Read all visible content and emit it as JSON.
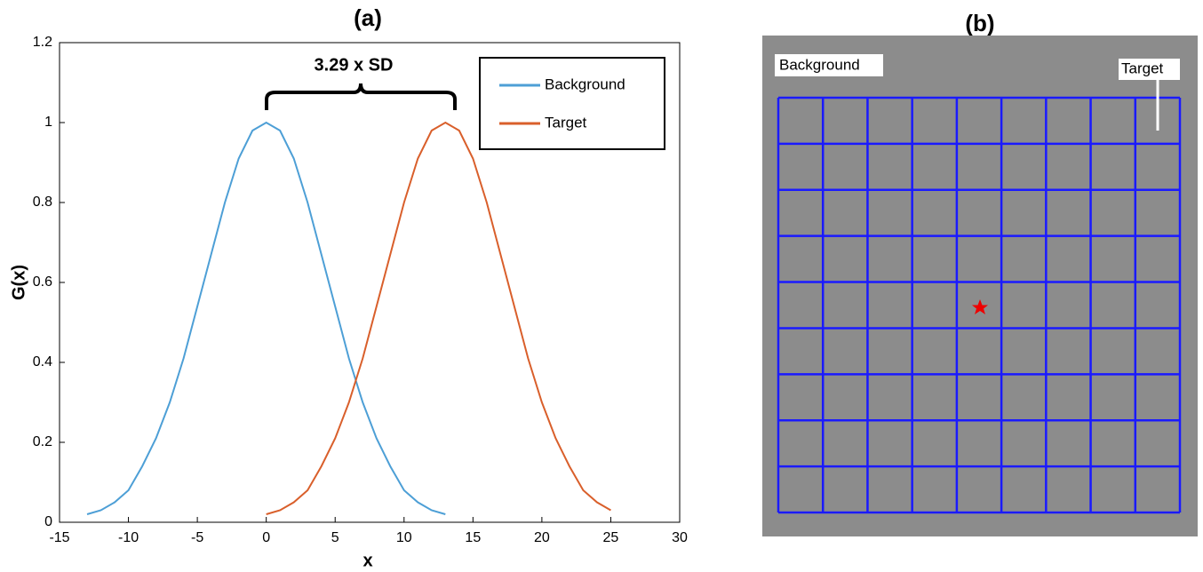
{
  "chart_data": {
    "type": "line",
    "title": "(a)",
    "xlabel": "x",
    "ylabel": "G(x)",
    "annotation": "3.29 x SD",
    "series": [
      {
        "name": "Background",
        "color": "#4d9fd6",
        "x": [
          -13,
          -12,
          -11,
          -10,
          -9,
          -8,
          -7,
          -6,
          -5,
          -4,
          -3,
          -2,
          -1,
          0,
          1,
          2,
          3,
          4,
          5,
          6,
          7,
          8,
          9,
          10,
          11,
          12,
          13
        ],
        "values": [
          0.02,
          0.03,
          0.05,
          0.08,
          0.14,
          0.21,
          0.3,
          0.41,
          0.54,
          0.67,
          0.8,
          0.91,
          0.98,
          1,
          0.98,
          0.91,
          0.8,
          0.67,
          0.54,
          0.41,
          0.3,
          0.21,
          0.14,
          0.08,
          0.05,
          0.03,
          0.02
        ]
      },
      {
        "name": "Target",
        "color": "#d95f2b",
        "x": [
          0,
          1,
          2,
          3,
          4,
          5,
          6,
          7,
          8,
          9,
          10,
          11,
          12,
          13,
          14,
          15,
          16,
          17,
          18,
          19,
          20,
          21,
          22,
          23,
          24,
          25
        ],
        "values": [
          0.02,
          0.03,
          0.05,
          0.08,
          0.14,
          0.21,
          0.3,
          0.41,
          0.54,
          0.67,
          0.8,
          0.91,
          0.98,
          1,
          0.98,
          0.91,
          0.8,
          0.67,
          0.54,
          0.41,
          0.3,
          0.21,
          0.14,
          0.08,
          0.05,
          0.03
        ]
      }
    ],
    "xlim": [
      -15,
      30
    ],
    "xticks": [
      -15,
      -10,
      -5,
      0,
      5,
      10,
      15,
      20,
      25,
      30
    ],
    "ylim": [
      0,
      1.2
    ],
    "yticks": [
      0,
      0.2,
      0.4,
      0.6,
      0.8,
      1,
      1.2
    ],
    "grid": false,
    "legend": "upper right"
  },
  "panel_b": {
    "title": "(b)",
    "labels": [
      "Background",
      "Target"
    ]
  }
}
